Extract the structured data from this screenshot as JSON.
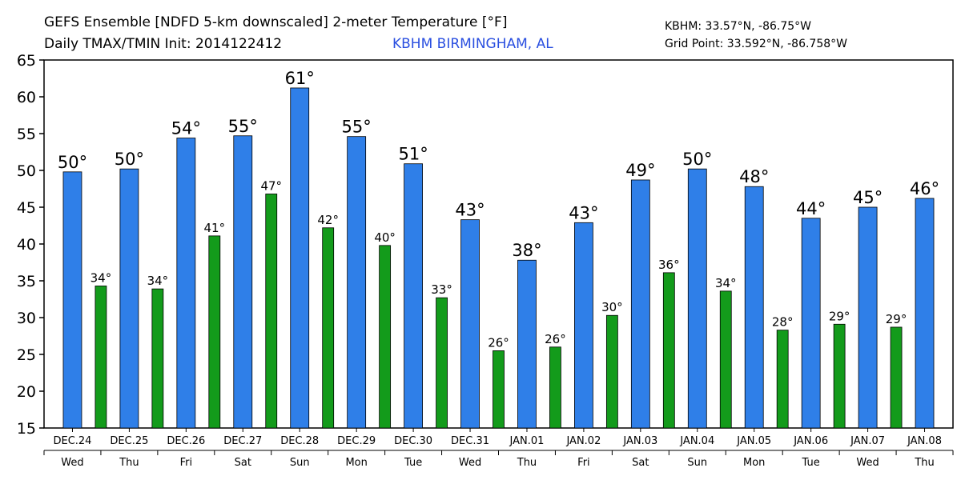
{
  "chart_data": {
    "type": "bar",
    "title": "GEFS Ensemble [NDFD 5-km downscaled] 2-meter Temperature [°F]",
    "subtitle": "Daily TMAX/TMIN Init: 2014122412",
    "location": "KBHM BIRMINGHAM, AL",
    "annotations": [
      "KBHM: 33.57°N, -86.75°W",
      "Grid Point: 33.592°N, -86.758°W"
    ],
    "categories": [
      "DEC.24",
      "DEC.25",
      "DEC.26",
      "DEC.27",
      "DEC.28",
      "DEC.29",
      "DEC.30",
      "DEC.31",
      "JAN.01",
      "JAN.02",
      "JAN.03",
      "JAN.04",
      "JAN.05",
      "JAN.06",
      "JAN.07",
      "JAN.08"
    ],
    "weekdays": [
      "Wed",
      "Thu",
      "Fri",
      "Sat",
      "Sun",
      "Mon",
      "Tue",
      "Wed",
      "Thu",
      "Fri",
      "Sat",
      "Sun",
      "Mon",
      "Tue",
      "Wed",
      "Thu"
    ],
    "series": [
      {
        "color": "#2f7fe8",
        "values": [
          49.8,
          50.2,
          54.4,
          54.7,
          61.2,
          54.6,
          50.9,
          43.3,
          37.8,
          42.9,
          48.7,
          50.2,
          47.8,
          43.5,
          45.0,
          46.2
        ],
        "value_labels": [
          "50°",
          "50°",
          "54°",
          "55°",
          "61°",
          "55°",
          "51°",
          "43°",
          "38°",
          "43°",
          "49°",
          "50°",
          "48°",
          "44°",
          "45°",
          "46°"
        ]
      },
      {
        "color": "#139b1b",
        "values": [
          34.3,
          33.9,
          41.1,
          46.8,
          42.2,
          39.8,
          32.7,
          25.5,
          26.0,
          30.3,
          36.1,
          33.6,
          28.3,
          29.1,
          28.7,
          null
        ],
        "value_labels": [
          "34°",
          "34°",
          "41°",
          "47°",
          "42°",
          "40°",
          "33°",
          "26°",
          "26°",
          "30°",
          "36°",
          "34°",
          "28°",
          "29°",
          "29°",
          null
        ]
      }
    ],
    "ylim": [
      15,
      65
    ],
    "yticks": [
      15,
      20,
      25,
      30,
      35,
      40,
      45,
      50,
      55,
      60,
      65
    ]
  }
}
